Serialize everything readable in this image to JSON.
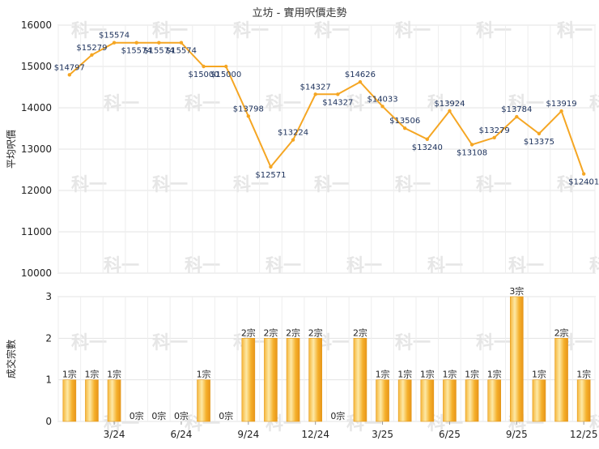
{
  "chart_data": [
    {
      "type": "line",
      "title": "立坊 - 實用呎價走勢",
      "ylabel": "平均呎價",
      "ylim": [
        10000,
        16000
      ],
      "yticks": [
        10000,
        11000,
        12000,
        13000,
        14000,
        15000,
        16000
      ],
      "grid": true,
      "color": "#f5a623",
      "values": [
        14797,
        15279,
        15574,
        15574,
        15574,
        15574,
        15000,
        15000,
        13798,
        12571,
        13224,
        14327,
        14327,
        14626,
        14033,
        13506,
        13240,
        13924,
        13108,
        13279,
        13784,
        13375,
        13919,
        12401
      ],
      "data_labels": [
        "$14797",
        "$15279",
        "$15574",
        "$15574",
        "$15574",
        "$15574",
        "$15000",
        "$15000",
        "$13798",
        "$12571",
        "$13224",
        "$14327",
        "$14327",
        "$14626",
        "$14033",
        "$13506",
        "$13240",
        "$13924",
        "$13108",
        "$13279",
        "$13784",
        "$13375",
        "$13919",
        "$12401"
      ]
    },
    {
      "type": "bar",
      "ylabel": "成交宗數",
      "ylim": [
        0,
        3
      ],
      "yticks": [
        0,
        1,
        2,
        3
      ],
      "grid": true,
      "color": "#f5a623",
      "values": [
        1,
        1,
        1,
        0,
        0,
        0,
        1,
        0,
        2,
        2,
        2,
        2,
        0,
        2,
        1,
        1,
        1,
        1,
        1,
        1,
        3,
        1,
        2,
        1
      ],
      "data_labels": [
        "1宗",
        "1宗",
        "1宗",
        "0宗",
        "0宗",
        "0宗",
        "1宗",
        "0宗",
        "2宗",
        "2宗",
        "2宗",
        "2宗",
        "0宗",
        "2宗",
        "1宗",
        "1宗",
        "1宗",
        "1宗",
        "1宗",
        "1宗",
        "3宗",
        "1宗",
        "2宗",
        "1宗"
      ],
      "xtick_labels": [
        {
          "index": 2,
          "label": "3/24"
        },
        {
          "index": 5,
          "label": "6/24"
        },
        {
          "index": 8,
          "label": "9/24"
        },
        {
          "index": 11,
          "label": "12/24"
        },
        {
          "index": 14,
          "label": "3/25"
        },
        {
          "index": 17,
          "label": "6/25"
        },
        {
          "index": 20,
          "label": "9/25"
        },
        {
          "index": 23,
          "label": "12/25"
        }
      ]
    }
  ],
  "watermark_text": "科一"
}
